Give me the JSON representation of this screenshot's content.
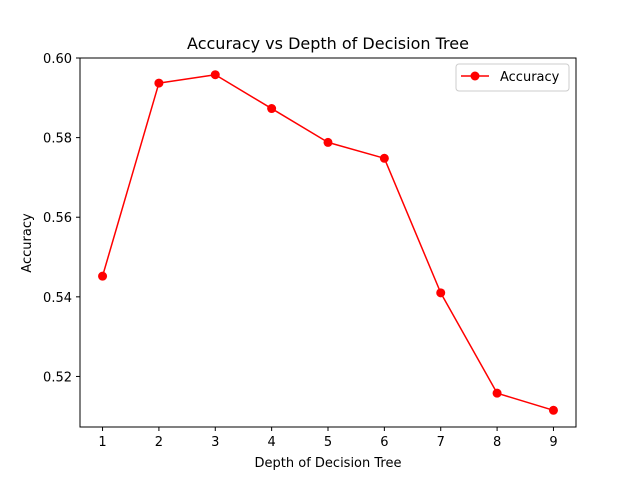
{
  "chart_data": {
    "type": "line",
    "title": "Accuracy vs Depth of Decision Tree",
    "xlabel": "Depth of Decision Tree",
    "ylabel": "Accuracy",
    "x": [
      1,
      2,
      3,
      4,
      5,
      6,
      7,
      8,
      9
    ],
    "series": [
      {
        "name": "Accuracy",
        "color": "#ff0000",
        "marker": "circle",
        "values": [
          0.5452,
          0.5937,
          0.5958,
          0.5873,
          0.5788,
          0.5748,
          0.541,
          0.5158,
          0.5115
        ]
      }
    ],
    "xticks": [
      "1",
      "2",
      "3",
      "4",
      "5",
      "6",
      "7",
      "8",
      "9"
    ],
    "yticks": [
      "0.52",
      "0.54",
      "0.56",
      "0.58",
      "0.60"
    ],
    "xlim": [
      0.6,
      9.4
    ],
    "ylim": [
      0.5073,
      0.6
    ],
    "grid": false,
    "legend_position": "upper-right"
  }
}
